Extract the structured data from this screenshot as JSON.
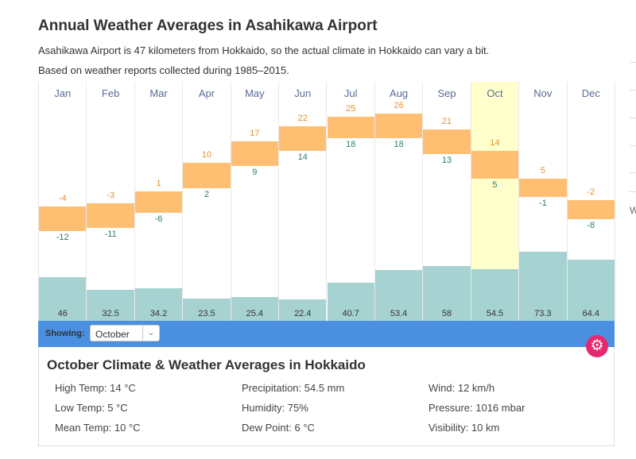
{
  "title": "Annual Weather Averages in Asahikawa Airport",
  "subtitle": "Asahikawa Airport is 47 kilometers from Hokkaido, so the actual climate in Hokkaido can vary a bit.",
  "source_note": "Based on weather reports collected during 1985–2015.",
  "chart_data": {
    "type": "bar",
    "categories": [
      "Jan",
      "Feb",
      "Mar",
      "Apr",
      "May",
      "Jun",
      "Jul",
      "Aug",
      "Sep",
      "Oct",
      "Nov",
      "Dec"
    ],
    "series": [
      {
        "name": "High Temp (°C)",
        "values": [
          -4,
          -3,
          1,
          10,
          17,
          22,
          25,
          26,
          21,
          14,
          5,
          -2
        ]
      },
      {
        "name": "Low Temp (°C)",
        "values": [
          -12,
          -11,
          -6,
          2,
          9,
          14,
          18,
          18,
          13,
          5,
          -1,
          -8
        ]
      },
      {
        "name": "Precipitation (mm)",
        "values": [
          46,
          32.5,
          34.2,
          23.5,
          25.4,
          22.4,
          40.7,
          53.4,
          58,
          54.5,
          73.3,
          64.4
        ]
      }
    ],
    "selected": "Oct",
    "colors": {
      "temp": "#ffbf73",
      "precip": "#a6d3d1",
      "highlight": "#ffffcc"
    }
  },
  "selector": {
    "label": "Showing:",
    "value": "October"
  },
  "details": {
    "title": "October Climate & Weather Averages in Hokkaido",
    "items": [
      "High Temp: 14 °C",
      "Low Temp: 5 °C",
      "Mean Temp: 10 °C",
      "Precipitation: 54.5 mm",
      "Humidity: 75%",
      "Dew Point: 6 °C",
      "Wind: 12 km/h",
      "Pressure: 1016 mbar",
      "Visibility: 10 km"
    ]
  },
  "edge_text": "W"
}
